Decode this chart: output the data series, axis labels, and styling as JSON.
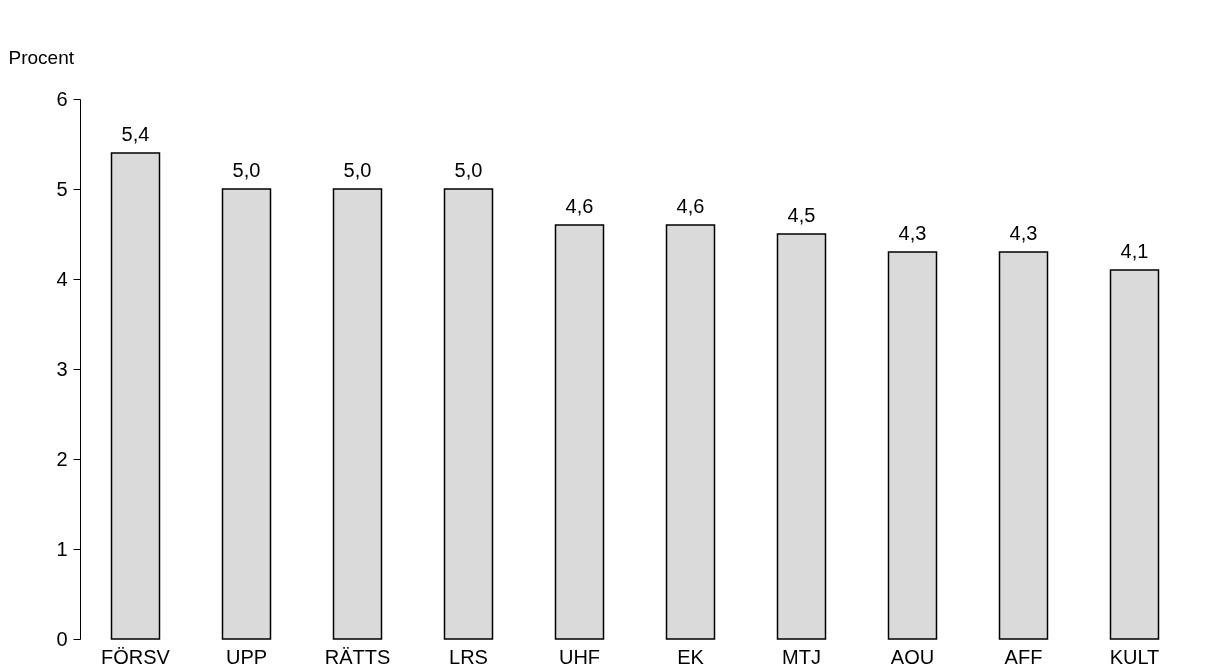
{
  "chart_data": {
    "type": "bar",
    "ylabel": "Procent",
    "categories": [
      "FÖRSV",
      "UPP",
      "RÄTTS",
      "LRS",
      "UHF",
      "EK",
      "MTJ",
      "AOU",
      "AFF",
      "KULT"
    ],
    "values": [
      5.4,
      5.0,
      5.0,
      5.0,
      4.6,
      4.6,
      4.5,
      4.3,
      4.3,
      4.1
    ],
    "value_labels": [
      "5,4",
      "5,0",
      "5,0",
      "5,0",
      "4,6",
      "4,6",
      "4,5",
      "4,3",
      "4,3",
      "4,1"
    ],
    "color": "#dadada",
    "ylim": [
      0,
      6
    ],
    "yticks": [
      0,
      1,
      2,
      3,
      4,
      5,
      6
    ],
    "grid": false
  }
}
